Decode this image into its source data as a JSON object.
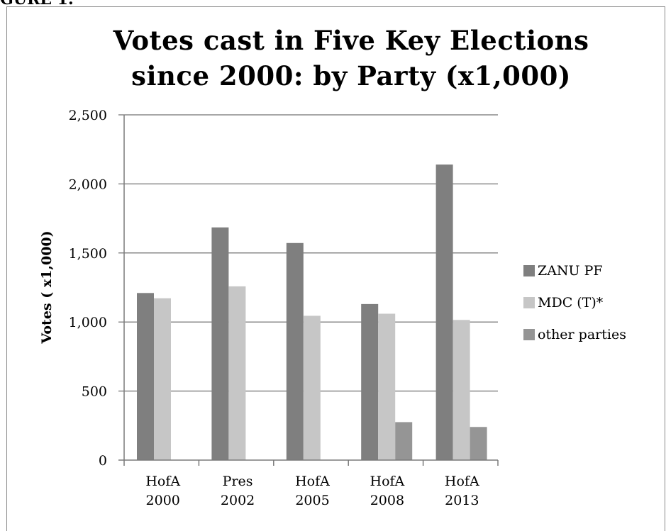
{
  "header_fragment": "GURE 1.",
  "chart_data": {
    "type": "bar",
    "title_lines": [
      "Votes cast in Five Key Elections",
      "since 2000: by Party (x1,000)"
    ],
    "ylabel": "Votes ( x1,000)",
    "xlabel": "",
    "categories": [
      [
        "HofA",
        "2000"
      ],
      [
        "Pres",
        "2002"
      ],
      [
        "HofA",
        "2005"
      ],
      [
        "HofA",
        "2008"
      ],
      [
        "HofA",
        "2013"
      ]
    ],
    "ylim": [
      0,
      2500
    ],
    "yticks": [
      0,
      500,
      1000,
      1500,
      2000,
      2500
    ],
    "ytick_labels": [
      "0",
      "500",
      "1,000",
      "1,500",
      "2,000",
      "2,500"
    ],
    "grid": true,
    "legend_position": "right",
    "series": [
      {
        "name": "ZANU PF",
        "color": "#7f7f7f",
        "values": [
          1210,
          1685,
          1572,
          1130,
          2140
        ]
      },
      {
        "name": "MDC (T)*",
        "color": "#c6c6c6",
        "values": [
          1172,
          1258,
          1045,
          1060,
          1015
        ]
      },
      {
        "name": "other parties",
        "color": "#959595",
        "values": [
          0,
          0,
          0,
          275,
          240
        ]
      }
    ]
  }
}
